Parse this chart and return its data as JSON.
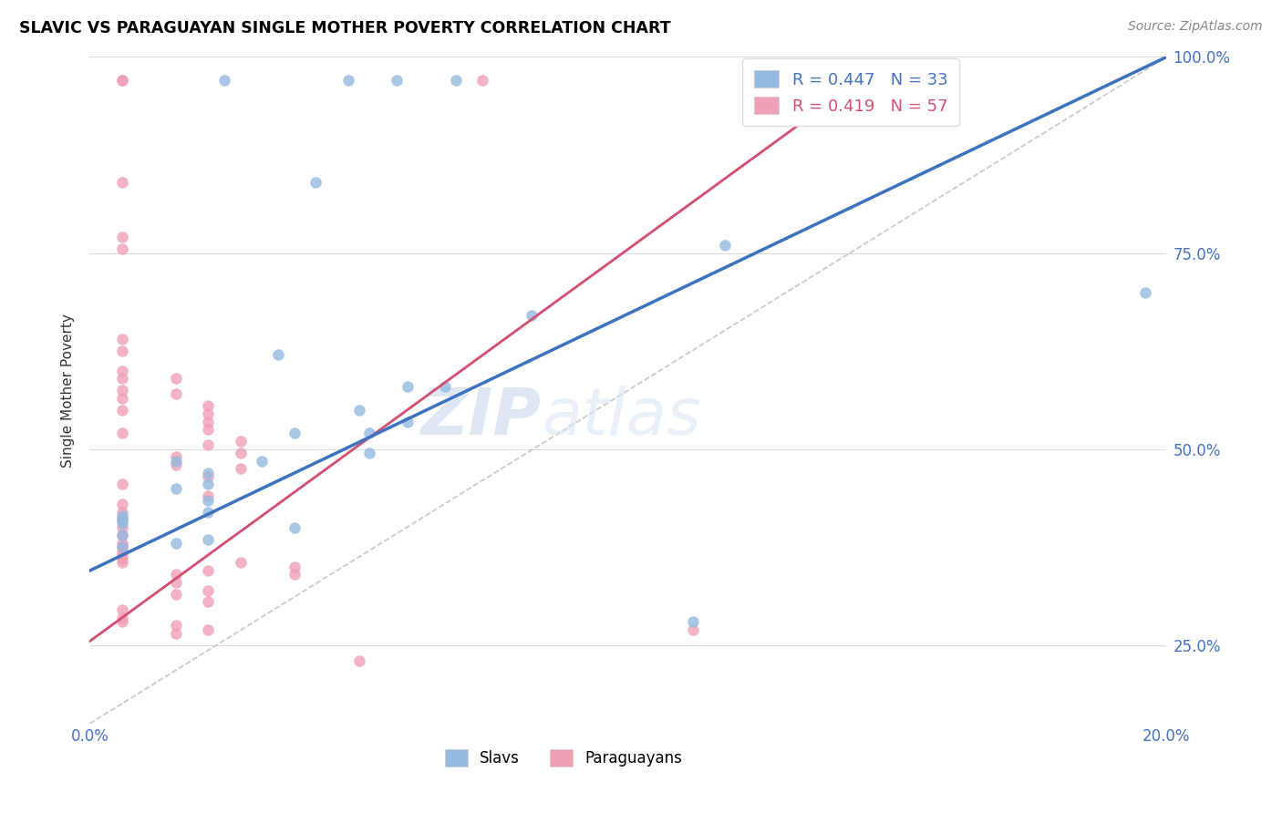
{
  "title": "SLAVIC VS PARAGUAYAN SINGLE MOTHER POVERTY CORRELATION CHART",
  "source": "Source: ZipAtlas.com",
  "ylabel": "Single Mother Poverty",
  "xlim": [
    0.0,
    0.2
  ],
  "ylim": [
    0.15,
    1.0
  ],
  "slav_R": "0.447",
  "slav_N": "33",
  "para_R": "0.419",
  "para_N": "57",
  "slav_color": "#94BAE0",
  "para_color": "#F0A0B5",
  "slav_line_color": "#3D72C0",
  "para_line_color": "#D45070",
  "slav_line_x0": 0.0,
  "slav_line_y0": 0.345,
  "slav_line_x1": 0.2,
  "slav_line_y1": 1.0,
  "para_line_x0": 0.0,
  "para_line_y0": 0.255,
  "para_line_x1": 0.135,
  "para_line_y1": 0.93,
  "para_line_dashed_x0": 0.0,
  "para_line_dashed_y0": 0.255,
  "para_line_dashed_x1": 0.135,
  "para_line_dashed_y1": 0.93,
  "ref_line_x0": 0.0,
  "ref_line_y0": 0.15,
  "ref_line_x1": 0.2,
  "ref_line_y1": 1.0,
  "slav_dots": [
    [
      0.025,
      0.97
    ],
    [
      0.048,
      0.97
    ],
    [
      0.057,
      0.97
    ],
    [
      0.068,
      0.97
    ],
    [
      0.135,
      0.97
    ],
    [
      0.042,
      0.84
    ],
    [
      0.082,
      0.67
    ],
    [
      0.118,
      0.76
    ],
    [
      0.035,
      0.62
    ],
    [
      0.059,
      0.58
    ],
    [
      0.066,
      0.58
    ],
    [
      0.05,
      0.55
    ],
    [
      0.059,
      0.535
    ],
    [
      0.038,
      0.52
    ],
    [
      0.052,
      0.52
    ],
    [
      0.052,
      0.495
    ],
    [
      0.032,
      0.485
    ],
    [
      0.016,
      0.485
    ],
    [
      0.022,
      0.47
    ],
    [
      0.022,
      0.455
    ],
    [
      0.016,
      0.45
    ],
    [
      0.022,
      0.435
    ],
    [
      0.022,
      0.42
    ],
    [
      0.006,
      0.415
    ],
    [
      0.006,
      0.405
    ],
    [
      0.006,
      0.41
    ],
    [
      0.006,
      0.39
    ],
    [
      0.038,
      0.4
    ],
    [
      0.022,
      0.385
    ],
    [
      0.016,
      0.38
    ],
    [
      0.006,
      0.375
    ],
    [
      0.112,
      0.28
    ],
    [
      0.196,
      0.7
    ]
  ],
  "para_dots": [
    [
      0.006,
      0.97
    ],
    [
      0.006,
      0.97
    ],
    [
      0.073,
      0.97
    ],
    [
      0.006,
      0.84
    ],
    [
      0.006,
      0.77
    ],
    [
      0.006,
      0.755
    ],
    [
      0.006,
      0.64
    ],
    [
      0.006,
      0.625
    ],
    [
      0.006,
      0.6
    ],
    [
      0.006,
      0.59
    ],
    [
      0.016,
      0.59
    ],
    [
      0.006,
      0.575
    ],
    [
      0.016,
      0.57
    ],
    [
      0.006,
      0.565
    ],
    [
      0.022,
      0.555
    ],
    [
      0.006,
      0.55
    ],
    [
      0.022,
      0.545
    ],
    [
      0.022,
      0.535
    ],
    [
      0.022,
      0.525
    ],
    [
      0.006,
      0.52
    ],
    [
      0.028,
      0.51
    ],
    [
      0.022,
      0.505
    ],
    [
      0.028,
      0.495
    ],
    [
      0.016,
      0.49
    ],
    [
      0.016,
      0.48
    ],
    [
      0.028,
      0.475
    ],
    [
      0.022,
      0.465
    ],
    [
      0.006,
      0.455
    ],
    [
      0.022,
      0.44
    ],
    [
      0.006,
      0.43
    ],
    [
      0.006,
      0.42
    ],
    [
      0.006,
      0.41
    ],
    [
      0.006,
      0.4
    ],
    [
      0.006,
      0.39
    ],
    [
      0.006,
      0.38
    ],
    [
      0.006,
      0.375
    ],
    [
      0.006,
      0.37
    ],
    [
      0.006,
      0.365
    ],
    [
      0.006,
      0.36
    ],
    [
      0.006,
      0.355
    ],
    [
      0.028,
      0.355
    ],
    [
      0.038,
      0.35
    ],
    [
      0.022,
      0.345
    ],
    [
      0.038,
      0.34
    ],
    [
      0.016,
      0.34
    ],
    [
      0.016,
      0.33
    ],
    [
      0.022,
      0.32
    ],
    [
      0.016,
      0.315
    ],
    [
      0.022,
      0.305
    ],
    [
      0.006,
      0.295
    ],
    [
      0.006,
      0.285
    ],
    [
      0.006,
      0.28
    ],
    [
      0.016,
      0.275
    ],
    [
      0.022,
      0.27
    ],
    [
      0.016,
      0.265
    ],
    [
      0.05,
      0.23
    ],
    [
      0.112,
      0.27
    ]
  ],
  "ytick_positions": [
    0.25,
    0.5,
    0.75,
    1.0
  ],
  "ytick_labels": [
    "25.0%",
    "50.0%",
    "75.0%",
    "100.0%"
  ],
  "xtick_positions": [
    0.0,
    0.05,
    0.1,
    0.15,
    0.2
  ],
  "xtick_labels": [
    "0.0%",
    "",
    "",
    "",
    "20.0%"
  ]
}
